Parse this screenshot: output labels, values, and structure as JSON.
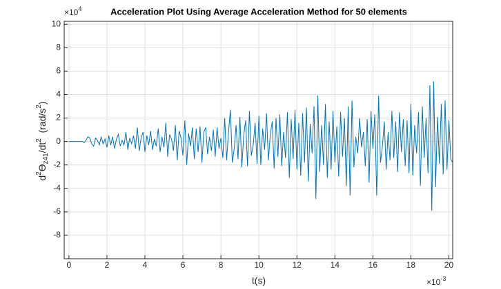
{
  "chart_data": {
    "type": "line",
    "title": "Acceleration Plot Using Average Acceleration Method for 50 elements",
    "xlabel": "t(s)",
    "ylabel_parts": [
      "d",
      "2",
      "ϴ",
      "z41",
      "/dt",
      "2",
      "  (rad/s",
      "2",
      ")"
    ],
    "exponent_base": "×10",
    "x_exponent": "-3",
    "y_exponent": "4",
    "color": "#0072bd",
    "grid": true,
    "xlim": [
      -0.25,
      20.2
    ],
    "ylim": [
      -10,
      10.25
    ],
    "xticks": [
      0,
      2,
      4,
      6,
      8,
      10,
      12,
      14,
      16,
      18,
      20
    ],
    "yticks": [
      -8,
      -6,
      -4,
      -2,
      0,
      2,
      4,
      6,
      8,
      10
    ],
    "x": [
      0,
      0.1,
      0.2,
      0.3,
      0.4,
      0.5,
      0.6,
      0.7,
      0.8,
      0.9,
      1,
      1.1,
      1.2,
      1.3,
      1.4,
      1.5,
      1.6,
      1.7,
      1.8,
      1.9,
      2,
      2.1,
      2.2,
      2.3,
      2.4,
      2.5,
      2.6,
      2.7,
      2.8,
      2.9,
      3,
      3.1,
      3.2,
      3.3,
      3.4,
      3.5,
      3.6,
      3.7,
      3.8,
      3.9,
      4,
      4.1,
      4.2,
      4.3,
      4.4,
      4.5,
      4.6,
      4.7,
      4.8,
      4.9,
      5,
      5.1,
      5.2,
      5.3,
      5.4,
      5.5,
      5.6,
      5.7,
      5.8,
      5.9,
      6,
      6.1,
      6.2,
      6.3,
      6.4,
      6.5,
      6.6,
      6.7,
      6.8,
      6.9,
      7,
      7.1,
      7.2,
      7.3,
      7.4,
      7.5,
      7.6,
      7.7,
      7.8,
      7.9,
      8,
      8.1,
      8.2,
      8.3,
      8.4,
      8.5,
      8.6,
      8.7,
      8.8,
      8.9,
      9,
      9.1,
      9.2,
      9.3,
      9.4,
      9.5,
      9.6,
      9.7,
      9.8,
      9.9,
      10,
      10.1,
      10.2,
      10.3,
      10.4,
      10.5,
      10.6,
      10.7,
      10.8,
      10.9,
      11,
      11.1,
      11.2,
      11.3,
      11.4,
      11.5,
      11.6,
      11.7,
      11.8,
      11.9,
      12,
      12.1,
      12.2,
      12.3,
      12.4,
      12.5,
      12.6,
      12.7,
      12.8,
      12.9,
      13,
      13.1,
      13.2,
      13.3,
      13.4,
      13.5,
      13.6,
      13.7,
      13.8,
      13.9,
      14,
      14.1,
      14.2,
      14.3,
      14.4,
      14.5,
      14.6,
      14.7,
      14.8,
      14.9,
      15,
      15.1,
      15.2,
      15.3,
      15.4,
      15.5,
      15.6,
      15.7,
      15.8,
      15.9,
      16,
      16.1,
      16.2,
      16.3,
      16.4,
      16.5,
      16.6,
      16.7,
      16.8,
      16.9,
      17,
      17.1,
      17.2,
      17.3,
      17.4,
      17.5,
      17.6,
      17.7,
      17.8,
      17.9,
      18,
      18.1,
      18.2,
      18.3,
      18.4,
      18.5,
      18.6,
      18.7,
      18.8,
      18.9,
      19,
      19.1,
      19.2,
      19.3,
      19.4,
      19.5,
      19.6,
      19.7,
      19.8,
      19.9,
      20,
      20.1,
      20.2
    ],
    "values": [
      0,
      0,
      0,
      0,
      0,
      0,
      0,
      0,
      -0.1,
      0.1,
      0.4,
      0.3,
      -0.2,
      -0.4,
      0.3,
      0.1,
      -0.3,
      0.4,
      -0.2,
      0.2,
      -0.5,
      0.5,
      -0.3,
      0.4,
      -0.6,
      0.2,
      0.6,
      -0.4,
      0.1,
      -0.3,
      0.8,
      -0.7,
      0.3,
      -0.2,
      0.5,
      -0.6,
      1.2,
      -0.8,
      0.3,
      0.8,
      -0.9,
      0.5,
      -0.3,
      0.9,
      -0.7,
      0.2,
      -0.4,
      1.1,
      -0.9,
      0.4,
      -0.5,
      1.6,
      -1.3,
      0.6,
      0.2,
      -0.8,
      1.4,
      -1.6,
      0.9,
      0.3,
      -1.2,
      1.8,
      -2.0,
      0.7,
      -0.4,
      1.2,
      -1.5,
      1.1,
      -0.9,
      1.3,
      -1.8,
      0.8,
      1.2,
      -1.1,
      0.4,
      -0.8,
      1.0,
      -1.3,
      1.2,
      -0.6,
      0.3,
      -1.4,
      2.0,
      -1.6,
      0.8,
      2.7,
      -1.8,
      -0.6,
      1.4,
      -1.5,
      2.1,
      -2.2,
      0.5,
      1.8,
      -2.1,
      2.6,
      -1.2,
      -0.3,
      1.6,
      -1.9,
      2.2,
      -2.0,
      1.1,
      -0.7,
      2.4,
      -1.6,
      0.6,
      1.7,
      -2.3,
      2.0,
      -1.3,
      2.3,
      -2.1,
      0.8,
      -1.4,
      2.5,
      -3.1,
      1.9,
      -1.5,
      2.7,
      -2.4,
      1.6,
      -2.9,
      2.4,
      -1.8,
      2.9,
      -3.4,
      1.5,
      -1.0,
      3.0,
      -4.9,
      3.9,
      -2.6,
      1.4,
      -2.0,
      3.2,
      -3.1,
      1.7,
      -2.4,
      2.6,
      -1.8,
      1.3,
      -3.0,
      2.5,
      -1.3,
      2.0,
      -3.8,
      3.0,
      -4.6,
      3.5,
      -2.2,
      0.4,
      -1.0,
      2.0,
      -0.5,
      0.8,
      -2.1,
      1.9,
      -3.5,
      2.6,
      -0.6,
      2.3,
      -4.6,
      3.9,
      -1.8,
      -0.4,
      1.7,
      -2.4,
      0.8,
      -1.6,
      2.6,
      -1.4,
      1.7,
      -2.6,
      2.5,
      -0.9,
      1.9,
      -2.1,
      1.8,
      -2.7,
      3.2,
      -2.9,
      1.4,
      -1.0,
      2.5,
      -3.8,
      3.0,
      -1.4,
      2.0,
      -2.7,
      4.8,
      -5.9,
      5.1,
      -3.9,
      2.1,
      -1.9,
      3.2,
      -2.8,
      3.5,
      -2.4,
      1.8,
      -1.5,
      -1.8
    ]
  }
}
